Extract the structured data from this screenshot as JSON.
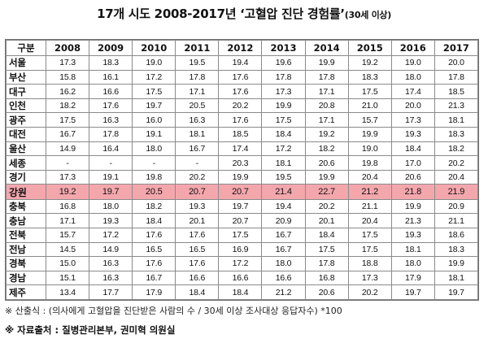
{
  "title": {
    "main": "17개 시도 2008-2017년 ‘고혈압 진단 경험률’",
    "suffix": "(30세 이상)"
  },
  "table": {
    "columns": [
      "구분",
      "2008",
      "2009",
      "2010",
      "2011",
      "2012",
      "2013",
      "2014",
      "2015",
      "2016",
      "2017"
    ],
    "rows": [
      {
        "region": "서울",
        "values": [
          "17.3",
          "18.3",
          "19.0",
          "19.5",
          "19.4",
          "19.6",
          "19.9",
          "19.2",
          "19.0",
          "20.0"
        ]
      },
      {
        "region": "부산",
        "values": [
          "15.8",
          "16.1",
          "17.2",
          "17.8",
          "17.6",
          "17.8",
          "17.8",
          "18.3",
          "18.0",
          "17.8"
        ]
      },
      {
        "region": "대구",
        "values": [
          "16.2",
          "16.6",
          "17.5",
          "17.1",
          "17.6",
          "17.3",
          "17.1",
          "17.5",
          "17.4",
          "18.5"
        ]
      },
      {
        "region": "인천",
        "values": [
          "18.2",
          "17.6",
          "19.7",
          "20.5",
          "20.2",
          "19.9",
          "20.8",
          "21.0",
          "20.0",
          "21.3"
        ]
      },
      {
        "region": "광주",
        "values": [
          "17.5",
          "16.3",
          "16.0",
          "16.3",
          "17.6",
          "17.5",
          "17.1",
          "15.7",
          "17.3",
          "18.1"
        ]
      },
      {
        "region": "대전",
        "values": [
          "16.7",
          "17.8",
          "19.1",
          "18.1",
          "18.5",
          "18.4",
          "19.2",
          "19.9",
          "19.3",
          "18.3"
        ]
      },
      {
        "region": "울산",
        "values": [
          "14.9",
          "16.4",
          "18.0",
          "16.7",
          "17.4",
          "17.2",
          "18.2",
          "19.0",
          "18.4",
          "18.2"
        ]
      },
      {
        "region": "세종",
        "values": [
          "-",
          "-",
          "-",
          "-",
          "20.3",
          "18.1",
          "20.6",
          "19.8",
          "17.0",
          "20.2"
        ]
      },
      {
        "region": "경기",
        "values": [
          "17.3",
          "19.1",
          "19.8",
          "20.2",
          "19.9",
          "19.5",
          "19.9",
          "20.4",
          "20.6",
          "20.4"
        ]
      },
      {
        "region": "강원",
        "values": [
          "19.2",
          "19.7",
          "20.5",
          "20.7",
          "20.7",
          "21.4",
          "22.7",
          "21.2",
          "21.8",
          "21.9"
        ],
        "highlight": true
      },
      {
        "region": "충북",
        "values": [
          "16.8",
          "18.0",
          "18.2",
          "19.3",
          "19.7",
          "19.4",
          "20.2",
          "21.1",
          "19.9",
          "20.9"
        ]
      },
      {
        "region": "충남",
        "values": [
          "17.1",
          "19.3",
          "18.4",
          "20.1",
          "20.7",
          "20.9",
          "20.1",
          "20.4",
          "21.3",
          "21.1"
        ]
      },
      {
        "region": "전북",
        "values": [
          "15.7",
          "17.2",
          "17.6",
          "17.6",
          "17.5",
          "16.7",
          "18.4",
          "17.5",
          "19.3",
          "18.6"
        ]
      },
      {
        "region": "전남",
        "values": [
          "14.5",
          "14.9",
          "16.5",
          "16.5",
          "16.9",
          "16.7",
          "17.5",
          "17.5",
          "18.1",
          "18.3"
        ]
      },
      {
        "region": "경북",
        "values": [
          "15.0",
          "16.3",
          "17.6",
          "17.6",
          "17.2",
          "18.0",
          "17.8",
          "18.8",
          "18.0",
          "19.9"
        ]
      },
      {
        "region": "경남",
        "values": [
          "15.1",
          "16.3",
          "16.7",
          "16.6",
          "16.6",
          "16.6",
          "16.8",
          "17.3",
          "17.9",
          "18.1"
        ]
      },
      {
        "region": "제주",
        "values": [
          "13.4",
          "17.7",
          "17.9",
          "18.4",
          "18.4",
          "21.2",
          "20.6",
          "20.2",
          "19.7",
          "19.7"
        ]
      }
    ]
  },
  "note": "※ 산출식 : (의사에게 고혈압을 진단받은 사람의 수 / 30세 이상 조사대상 응답자수) *100",
  "source": "※ 자료출처 : 질병관리본부, 권미혁 의원실",
  "colors": {
    "highlight_row": "#f3a7ad",
    "border": "#8a8a8a"
  }
}
